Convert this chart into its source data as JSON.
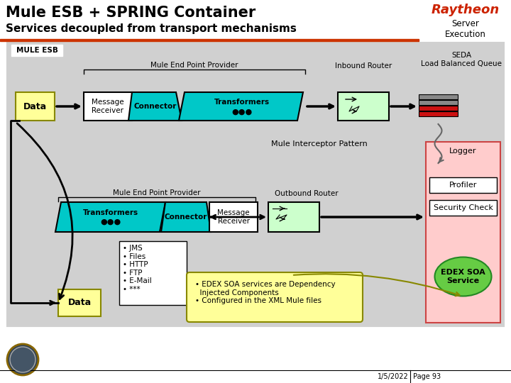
{
  "title_line1": "Mule ESB + SPRING Container",
  "title_line2": "Services decoupled from transport mechanisms",
  "raytheon_text": "Raytheon",
  "server_execution_text": "Server\nExecution",
  "mule_esb_label": "MULE ESB",
  "mule_end_point_provider_top": "Mule End Point Provider",
  "mule_end_point_provider_bottom": "Mule End Point Provider",
  "inbound_router": "Inbound Router",
  "seda_label": "SEDA\nLoad Balanced Queue",
  "message_receiver_top": "Message\nReceiver",
  "connector_top": "Connector",
  "transformers_top": "Transformers\n●●●",
  "outbound_router": "Outbound Router",
  "transformers_bottom": "Transformers\n●●●",
  "connector_bottom": "Connector",
  "message_receiver_bottom": "Message\nReceiver",
  "mule_interceptor": "Mule Interceptor Pattern",
  "logger": "Logger",
  "profiler": "Profiler",
  "security_check": "Security Check",
  "edex_soa": "EDEX SOA\nService",
  "data_top": "Data",
  "data_bottom": "Data",
  "transport_list": "• JMS\n• Files\n• HTTP\n• FTP\n• E-Mail\n• ***",
  "edex_note": "• EDEX SOA services are Dependency\n  Injected Components\n• Configured in the XML Mule files",
  "footer_date": "1/5/2022",
  "footer_page": "Page 93",
  "bg_color": "#ffffff",
  "mule_esb_box_bg": "#d0d0d0",
  "cyan_color": "#00c8c8",
  "light_green": "#ccffcc",
  "pink_bg": "#ffcccc",
  "yellow_note": "#ffff99",
  "green_ellipse": "#66cc44",
  "raytheon_color": "#cc2200",
  "title_color": "#000000"
}
